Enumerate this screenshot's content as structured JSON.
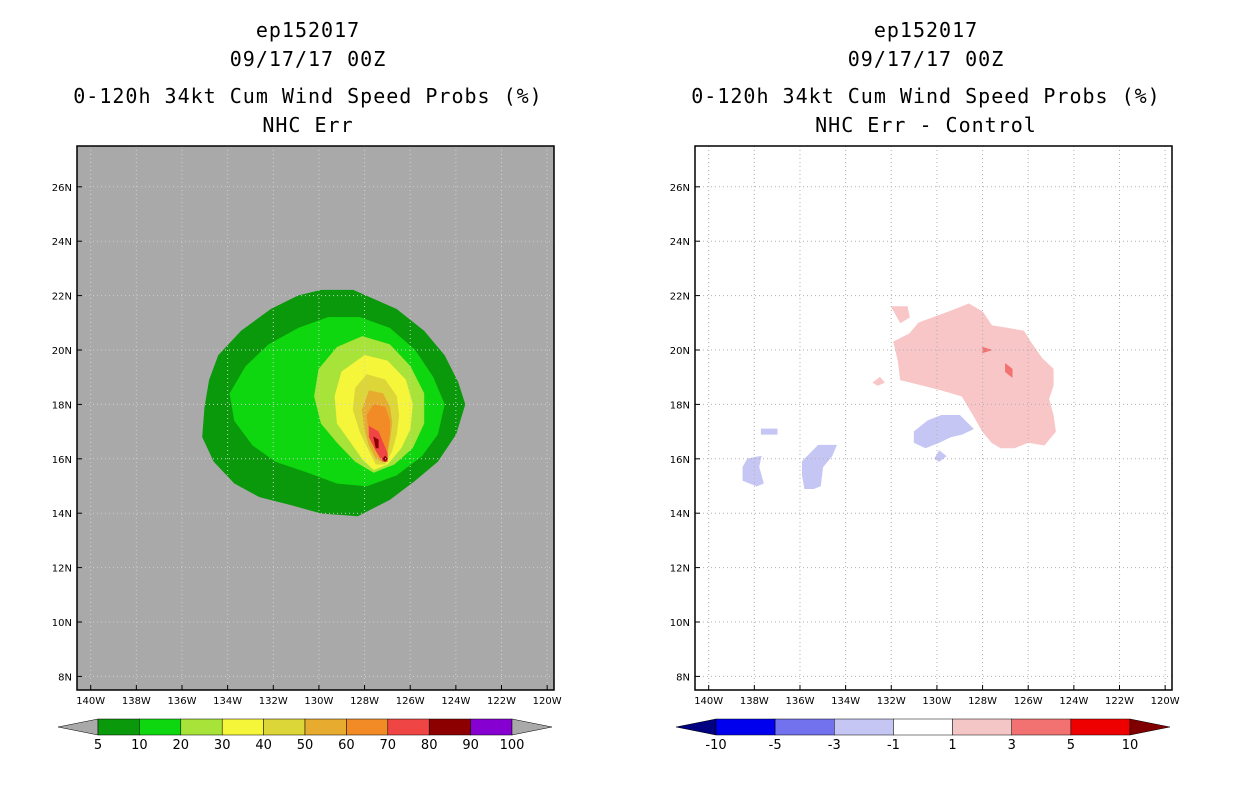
{
  "chart_data": [
    {
      "type": "contour_map",
      "storm_id": "ep152017",
      "datetime": "09/17/17 00Z",
      "title": "0-120h 34kt Cum Wind Speed Probs (%)",
      "subtitle": "NHC Err",
      "x_ticks": [
        "140W",
        "138W",
        "136W",
        "134W",
        "132W",
        "130W",
        "128W",
        "126W",
        "124W",
        "122W",
        "120W"
      ],
      "y_ticks": [
        "26N",
        "24N",
        "22N",
        "20N",
        "18N",
        "16N",
        "14N",
        "12N",
        "10N",
        "8N"
      ],
      "lon_range": [
        -140.6,
        -119.7
      ],
      "lat_range": [
        7.5,
        27.5
      ],
      "background_color": "#a9a9a9",
      "colorbar": {
        "labels": [
          "5",
          "10",
          "20",
          "30",
          "40",
          "50",
          "60",
          "70",
          "80",
          "90",
          "100"
        ],
        "colors": [
          "#a9a9a9",
          "#0a990a",
          "#0fd70f",
          "#a8e33a",
          "#f5f53a",
          "#ddd639",
          "#e6ab2f",
          "#f28b26",
          "#f04545",
          "#8c0000",
          "#8500d1",
          "#a9a9a9"
        ]
      },
      "contours": [
        {
          "level": 5,
          "color": "#0a990a",
          "polygon": [
            [
              -129.9,
              22.2
            ],
            [
              -128.5,
              22.2
            ],
            [
              -126.6,
              21.5
            ],
            [
              -125.4,
              20.7
            ],
            [
              -124.5,
              19.8
            ],
            [
              -123.9,
              18.8
            ],
            [
              -123.6,
              18.0
            ],
            [
              -124.0,
              16.9
            ],
            [
              -124.8,
              15.9
            ],
            [
              -125.8,
              15.2
            ],
            [
              -126.9,
              14.5
            ],
            [
              -128.3,
              13.9
            ],
            [
              -129.9,
              14.0
            ],
            [
              -131.2,
              14.3
            ],
            [
              -132.6,
              14.6
            ],
            [
              -133.7,
              15.1
            ],
            [
              -134.6,
              15.9
            ],
            [
              -135.1,
              16.8
            ],
            [
              -135.0,
              17.9
            ],
            [
              -134.8,
              18.9
            ],
            [
              -134.4,
              19.8
            ],
            [
              -133.4,
              20.7
            ],
            [
              -132.1,
              21.5
            ],
            [
              -130.9,
              22.0
            ]
          ]
        },
        {
          "level": 10,
          "color": "#0fd70f",
          "polygon": [
            [
              -129.6,
              21.2
            ],
            [
              -128.2,
              21.2
            ],
            [
              -126.9,
              20.8
            ],
            [
              -125.8,
              20.0
            ],
            [
              -125.0,
              19.0
            ],
            [
              -124.5,
              18.0
            ],
            [
              -124.8,
              16.9
            ],
            [
              -125.5,
              16.1
            ],
            [
              -126.6,
              15.4
            ],
            [
              -127.9,
              15.0
            ],
            [
              -129.2,
              15.1
            ],
            [
              -130.5,
              15.5
            ],
            [
              -131.9,
              15.9
            ],
            [
              -132.9,
              16.5
            ],
            [
              -133.7,
              17.4
            ],
            [
              -133.9,
              18.4
            ],
            [
              -133.2,
              19.4
            ],
            [
              -132.2,
              20.2
            ],
            [
              -130.9,
              20.8
            ]
          ]
        },
        {
          "level": 20,
          "color": "#a8e33a",
          "polygon": [
            [
              -128.1,
              20.5
            ],
            [
              -126.9,
              20.2
            ],
            [
              -126.0,
              19.4
            ],
            [
              -125.4,
              18.4
            ],
            [
              -125.4,
              17.3
            ],
            [
              -125.9,
              16.4
            ],
            [
              -126.7,
              15.8
            ],
            [
              -127.6,
              15.5
            ],
            [
              -128.4,
              15.9
            ],
            [
              -129.2,
              16.6
            ],
            [
              -129.9,
              17.3
            ],
            [
              -130.2,
              18.3
            ],
            [
              -130.0,
              19.3
            ],
            [
              -129.2,
              20.1
            ]
          ]
        },
        {
          "level": 30,
          "color": "#f5f53a",
          "polygon": [
            [
              -128.0,
              19.8
            ],
            [
              -127.0,
              19.6
            ],
            [
              -126.2,
              18.9
            ],
            [
              -125.9,
              18.0
            ],
            [
              -126.0,
              17.1
            ],
            [
              -126.4,
              16.4
            ],
            [
              -127.0,
              15.8
            ],
            [
              -127.6,
              15.6
            ],
            [
              -128.1,
              16.0
            ],
            [
              -128.6,
              16.6
            ],
            [
              -129.2,
              17.3
            ],
            [
              -129.3,
              18.3
            ],
            [
              -129.0,
              19.2
            ]
          ]
        },
        {
          "level": 40,
          "color": "#ddd639",
          "polygon": [
            [
              -127.9,
              19.1
            ],
            [
              -127.1,
              18.9
            ],
            [
              -126.6,
              18.3
            ],
            [
              -126.5,
              17.6
            ],
            [
              -126.6,
              16.9
            ],
            [
              -126.8,
              16.3
            ],
            [
              -127.1,
              15.8
            ],
            [
              -127.5,
              15.8
            ],
            [
              -127.8,
              16.3
            ],
            [
              -128.2,
              17.0
            ],
            [
              -128.5,
              17.8
            ],
            [
              -128.4,
              18.6
            ]
          ]
        },
        {
          "level": 50,
          "color": "#e6ab2f",
          "polygon": [
            [
              -127.8,
              18.5
            ],
            [
              -127.2,
              18.4
            ],
            [
              -126.9,
              17.9
            ],
            [
              -126.8,
              17.3
            ],
            [
              -126.9,
              16.7
            ],
            [
              -127.0,
              16.2
            ],
            [
              -127.2,
              15.9
            ],
            [
              -127.5,
              16.0
            ],
            [
              -127.8,
              16.5
            ],
            [
              -128.0,
              17.1
            ],
            [
              -128.1,
              17.8
            ]
          ]
        },
        {
          "level": 60,
          "color": "#f28b26",
          "polygon": [
            [
              -127.6,
              18.0
            ],
            [
              -127.1,
              17.9
            ],
            [
              -126.9,
              17.4
            ],
            [
              -126.9,
              16.9
            ],
            [
              -127.0,
              16.4
            ],
            [
              -127.1,
              16.0
            ],
            [
              -127.3,
              16.0
            ],
            [
              -127.6,
              16.5
            ],
            [
              -127.8,
              17.0
            ],
            [
              -127.9,
              17.6
            ]
          ]
        },
        {
          "level": 70,
          "color": "#f04545",
          "polygon": [
            [
              -127.8,
              17.2
            ],
            [
              -127.4,
              17.0
            ],
            [
              -127.2,
              16.6
            ],
            [
              -127.0,
              16.2
            ],
            [
              -127.0,
              15.9
            ],
            [
              -127.2,
              15.9
            ],
            [
              -127.5,
              16.3
            ],
            [
              -127.8,
              16.8
            ]
          ]
        },
        {
          "level": 80,
          "color": "#8c0000",
          "polygon": [
            [
              -127.6,
              16.8
            ],
            [
              -127.4,
              16.7
            ],
            [
              -127.4,
              16.4
            ],
            [
              -127.5,
              16.4
            ]
          ]
        },
        {
          "level": 80,
          "color": "#8c0000",
          "polygon": [
            [
              -127.1,
              16.1
            ],
            [
              -127.0,
              16.0
            ],
            [
              -127.1,
              15.9
            ],
            [
              -127.2,
              16.0
            ]
          ]
        }
      ]
    },
    {
      "type": "contour_map",
      "storm_id": "ep152017",
      "datetime": "09/17/17 00Z",
      "title": "0-120h 34kt Cum Wind Speed Probs (%)",
      "subtitle": "NHC Err - Control",
      "x_ticks": [
        "140W",
        "138W",
        "136W",
        "134W",
        "132W",
        "130W",
        "128W",
        "126W",
        "124W",
        "122W",
        "120W"
      ],
      "y_ticks": [
        "26N",
        "24N",
        "22N",
        "20N",
        "18N",
        "16N",
        "14N",
        "12N",
        "10N",
        "8N"
      ],
      "lon_range": [
        -140.6,
        -119.7
      ],
      "lat_range": [
        7.5,
        27.5
      ],
      "background_color": "#ffffff",
      "gridlines": true,
      "colorbar": {
        "labels": [
          "-10",
          "-5",
          "-3",
          "-1",
          "1",
          "3",
          "5",
          "10"
        ],
        "colors": [
          "#000080",
          "#0000ee",
          "#7272ee",
          "#c6c6f5",
          "#ffffff",
          "#f5c6c6",
          "#f27272",
          "#ee0000",
          "#800000"
        ]
      },
      "contours": [
        {
          "level": 1,
          "color": "#f8c6c6",
          "polygon": [
            [
              -130.8,
              21.0
            ],
            [
              -129.5,
              21.4
            ],
            [
              -128.6,
              21.7
            ],
            [
              -128.0,
              21.4
            ],
            [
              -127.6,
              20.9
            ],
            [
              -126.9,
              20.8
            ],
            [
              -126.2,
              20.7
            ],
            [
              -125.9,
              20.3
            ],
            [
              -125.4,
              19.7
            ],
            [
              -124.9,
              19.3
            ],
            [
              -124.9,
              18.7
            ],
            [
              -125.1,
              18.2
            ],
            [
              -124.9,
              17.6
            ],
            [
              -124.8,
              17.0
            ],
            [
              -125.3,
              16.5
            ],
            [
              -126.0,
              16.6
            ],
            [
              -126.6,
              16.4
            ],
            [
              -127.2,
              16.4
            ],
            [
              -127.6,
              16.6
            ],
            [
              -128.0,
              17.0
            ],
            [
              -128.4,
              17.6
            ],
            [
              -128.9,
              18.3
            ],
            [
              -129.7,
              18.5
            ],
            [
              -130.6,
              18.7
            ],
            [
              -131.6,
              18.9
            ],
            [
              -131.7,
              19.6
            ],
            [
              -131.9,
              20.3
            ],
            [
              -131.2,
              20.6
            ]
          ]
        },
        {
          "level": 1,
          "color": "#f8c6c6",
          "polygon": [
            [
              -132.0,
              21.6
            ],
            [
              -131.3,
              21.6
            ],
            [
              -131.2,
              21.2
            ],
            [
              -131.6,
              21.0
            ]
          ]
        },
        {
          "level": 1,
          "color": "#f8c6c6",
          "polygon": [
            [
              -132.5,
              19.0
            ],
            [
              -132.3,
              18.8
            ],
            [
              -132.6,
              18.7
            ],
            [
              -132.8,
              18.8
            ]
          ]
        },
        {
          "level": 3,
          "color": "#f27272",
          "polygon": [
            [
              -127.0,
              19.5
            ],
            [
              -126.7,
              19.3
            ],
            [
              -126.7,
              19.0
            ],
            [
              -127.0,
              19.2
            ]
          ]
        },
        {
          "level": 3,
          "color": "#f27272",
          "polygon": [
            [
              -128.0,
              20.1
            ],
            [
              -127.6,
              20.0
            ],
            [
              -128.0,
              19.9
            ]
          ]
        },
        {
          "level": -1,
          "color": "#c6c6f5",
          "polygon": [
            [
              -131.0,
              17.0
            ],
            [
              -130.4,
              17.4
            ],
            [
              -129.8,
              17.6
            ],
            [
              -129.0,
              17.6
            ],
            [
              -128.4,
              17.1
            ],
            [
              -128.9,
              16.9
            ],
            [
              -129.4,
              16.8
            ],
            [
              -129.9,
              16.6
            ],
            [
              -130.5,
              16.4
            ],
            [
              -131.0,
              16.6
            ]
          ]
        },
        {
          "level": -1,
          "color": "#c6c6f5",
          "polygon": [
            [
              -129.9,
              16.3
            ],
            [
              -129.6,
              16.1
            ],
            [
              -129.9,
              15.9
            ],
            [
              -130.1,
              16.0
            ]
          ]
        },
        {
          "level": -1,
          "color": "#c6c6f5",
          "polygon": [
            [
              -135.9,
              15.9
            ],
            [
              -135.2,
              16.5
            ],
            [
              -134.4,
              16.5
            ],
            [
              -134.6,
              16.1
            ],
            [
              -135.0,
              15.7
            ],
            [
              -135.1,
              15.0
            ],
            [
              -135.4,
              14.9
            ],
            [
              -135.8,
              14.9
            ],
            [
              -135.9,
              15.4
            ]
          ]
        },
        {
          "level": -1,
          "color": "#c6c6f5",
          "polygon": [
            [
              -138.3,
              16.0
            ],
            [
              -137.7,
              16.1
            ],
            [
              -137.8,
              15.7
            ],
            [
              -137.6,
              15.1
            ],
            [
              -137.9,
              15.0
            ],
            [
              -138.5,
              15.2
            ],
            [
              -138.5,
              15.7
            ]
          ]
        },
        {
          "level": -1,
          "color": "#c6c6f5",
          "polygon": [
            [
              -137.7,
              17.1
            ],
            [
              -137.0,
              17.1
            ],
            [
              -137.0,
              16.9
            ],
            [
              -137.7,
              16.9
            ]
          ]
        }
      ]
    }
  ]
}
